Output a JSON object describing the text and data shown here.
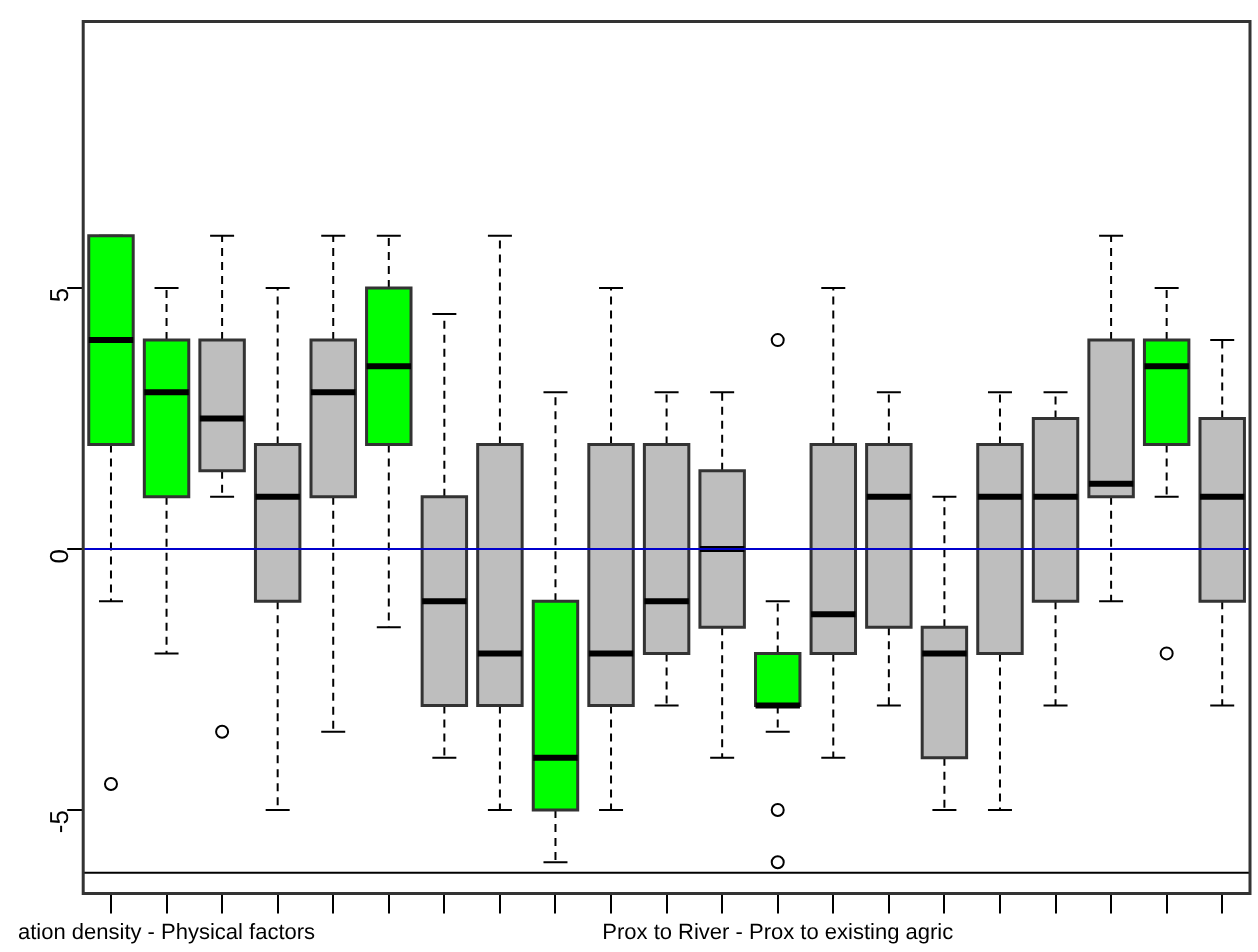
{
  "chart_data": {
    "type": "box",
    "categories": [
      null,
      "ation density - Physical factors",
      null,
      null,
      null,
      null,
      null,
      null,
      null,
      null,
      null,
      null,
      "Prox to River - Prox to existing agric",
      null,
      null,
      null,
      null,
      null,
      null,
      null,
      null
    ],
    "boxes": [
      {
        "low": -1,
        "q1": 2,
        "median": 4,
        "q3": 6,
        "high": 6,
        "outliers": [
          -4.5
        ]
      },
      {
        "low": -2,
        "q1": 1,
        "median": 3,
        "q3": 4,
        "high": 5
      },
      {
        "low": 1,
        "q1": 1.5,
        "median": 2.5,
        "q3": 4,
        "high": 6,
        "outliers": [
          -3.5
        ]
      },
      {
        "low": -5,
        "q1": -1,
        "median": 1,
        "q3": 2,
        "high": 5
      },
      {
        "low": -3.5,
        "q1": 1,
        "median": 3,
        "q3": 4,
        "high": 6
      },
      {
        "low": -1.5,
        "q1": 2,
        "median": 3.5,
        "q3": 5,
        "high": 6
      },
      {
        "low": -4,
        "q1": -3,
        "median": -1,
        "q3": 1,
        "high": 4.5
      },
      {
        "low": -5,
        "q1": -3,
        "median": -2,
        "q3": 2,
        "high": 6
      },
      {
        "low": -6,
        "q1": -5,
        "median": -4,
        "q3": -1,
        "high": 3
      },
      {
        "low": -5,
        "q1": -3,
        "median": -2,
        "q3": 2,
        "high": 5
      },
      {
        "low": -3,
        "q1": -2,
        "median": -1,
        "q3": 2,
        "high": 3
      },
      {
        "low": -4,
        "q1": -1.5,
        "median": 0,
        "q3": 1.5,
        "high": 3
      },
      {
        "low": -3.5,
        "q1": -3,
        "median": -3,
        "q3": -2,
        "high": -1,
        "outliers": [
          4,
          -5,
          -6
        ]
      },
      {
        "low": -4,
        "q1": -2,
        "median": -1.25,
        "q3": 2,
        "high": 5
      },
      {
        "low": -3,
        "q1": -1.5,
        "median": 1,
        "q3": 2,
        "high": 3
      },
      {
        "low": -5,
        "q1": -4,
        "median": -2,
        "q3": -1.5,
        "high": 1
      },
      {
        "low": -5,
        "q1": -2,
        "median": 1,
        "q3": 2,
        "high": 3
      },
      {
        "low": -3,
        "q1": -1,
        "median": 1,
        "q3": 2.5,
        "high": 3
      },
      {
        "low": -1,
        "q1": 1,
        "median": 1.25,
        "q3": 4,
        "high": 6
      },
      {
        "low": 1,
        "q1": 2,
        "median": 3.5,
        "q3": 4,
        "high": 5,
        "outliers": [
          -2
        ]
      },
      {
        "low": -3,
        "q1": -1,
        "median": 1,
        "q3": 2.5,
        "high": 4
      }
    ],
    "colors": [
      "#00ff00",
      "#00ff00",
      "#bebebe",
      "#bebebe",
      "#bebebe",
      "#00ff00",
      "#bebebe",
      "#bebebe",
      "#00ff00",
      "#bebebe",
      "#bebebe",
      "#bebebe",
      "#00ff00",
      "#bebebe",
      "#bebebe",
      "#bebebe",
      "#bebebe",
      "#bebebe",
      "#bebebe",
      "#00ff00",
      "#bebebe"
    ],
    "ylim": [
      -6.6,
      10.1
    ],
    "yticks": [
      -5,
      0,
      5
    ],
    "ref_lines": [
      {
        "axis": "y",
        "value": 0,
        "color": "#0000cc"
      },
      {
        "axis": "y",
        "value": -6.2,
        "color": "#000000"
      }
    ],
    "grid": false,
    "legend": false
  }
}
